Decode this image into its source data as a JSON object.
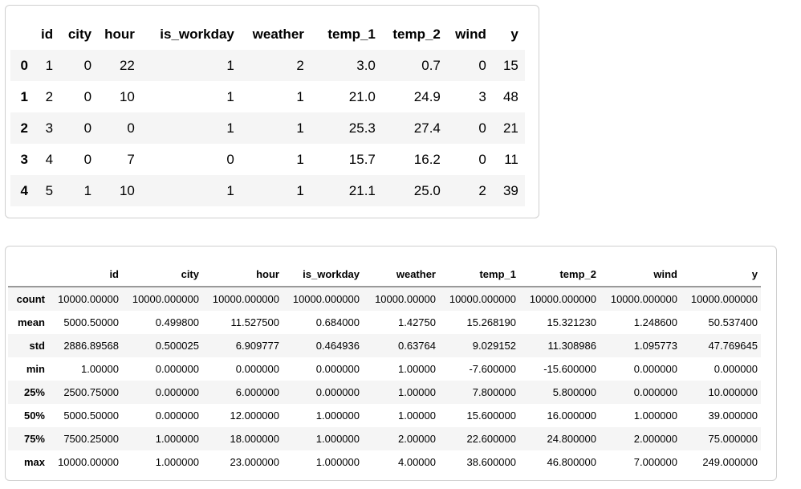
{
  "head_table": {
    "columns": [
      "",
      "id",
      "city",
      "hour",
      "is_workday",
      "weather",
      "temp_1",
      "temp_2",
      "wind",
      "y"
    ],
    "rows": [
      [
        "0",
        "1",
        "0",
        "22",
        "1",
        "2",
        "3.0",
        "0.7",
        "0",
        "15"
      ],
      [
        "1",
        "2",
        "0",
        "10",
        "1",
        "1",
        "21.0",
        "24.9",
        "3",
        "48"
      ],
      [
        "2",
        "3",
        "0",
        "0",
        "1",
        "1",
        "25.3",
        "27.4",
        "0",
        "21"
      ],
      [
        "3",
        "4",
        "0",
        "7",
        "0",
        "1",
        "15.7",
        "16.2",
        "0",
        "11"
      ],
      [
        "4",
        "5",
        "1",
        "10",
        "1",
        "1",
        "21.1",
        "25.0",
        "2",
        "39"
      ]
    ]
  },
  "describe_table": {
    "columns": [
      "",
      "id",
      "city",
      "hour",
      "is_workday",
      "weather",
      "temp_1",
      "temp_2",
      "wind",
      "y"
    ],
    "rows": [
      [
        "count",
        "10000.00000",
        "10000.000000",
        "10000.000000",
        "10000.000000",
        "10000.00000",
        "10000.000000",
        "10000.000000",
        "10000.000000",
        "10000.000000"
      ],
      [
        "mean",
        "5000.50000",
        "0.499800",
        "11.527500",
        "0.684000",
        "1.42750",
        "15.268190",
        "15.321230",
        "1.248600",
        "50.537400"
      ],
      [
        "std",
        "2886.89568",
        "0.500025",
        "6.909777",
        "0.464936",
        "0.63764",
        "9.029152",
        "11.308986",
        "1.095773",
        "47.769645"
      ],
      [
        "min",
        "1.00000",
        "0.000000",
        "0.000000",
        "0.000000",
        "1.00000",
        "-7.600000",
        "-15.600000",
        "0.000000",
        "0.000000"
      ],
      [
        "25%",
        "2500.75000",
        "0.000000",
        "6.000000",
        "0.000000",
        "1.00000",
        "7.800000",
        "5.800000",
        "0.000000",
        "10.000000"
      ],
      [
        "50%",
        "5000.50000",
        "0.000000",
        "12.000000",
        "1.000000",
        "1.00000",
        "15.600000",
        "16.000000",
        "1.000000",
        "39.000000"
      ],
      [
        "75%",
        "7500.25000",
        "1.000000",
        "18.000000",
        "1.000000",
        "2.00000",
        "22.600000",
        "24.800000",
        "2.000000",
        "75.000000"
      ],
      [
        "max",
        "10000.00000",
        "1.000000",
        "23.000000",
        "1.000000",
        "4.00000",
        "38.600000",
        "46.800000",
        "7.000000",
        "249.000000"
      ]
    ]
  }
}
